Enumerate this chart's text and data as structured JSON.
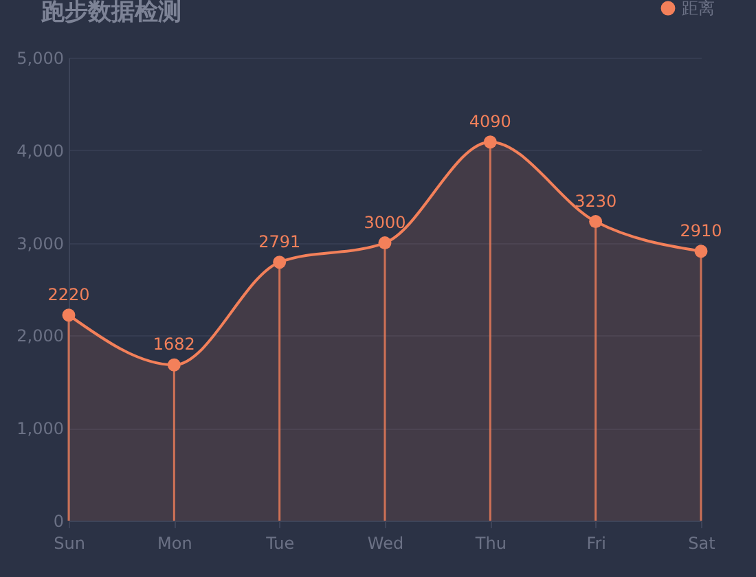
{
  "chart_data": {
    "type": "area",
    "title": "跑步数据检测",
    "categories": [
      "Sun",
      "Mon",
      "Tue",
      "Wed",
      "Thu",
      "Fri",
      "Sat"
    ],
    "series": [
      {
        "name": "距离",
        "color": "#f3805a",
        "values": [
          2220,
          1682,
          2791,
          3000,
          4090,
          3230,
          2910
        ]
      }
    ],
    "ylim": [
      0,
      5000
    ],
    "yticks": [
      0,
      {
        "value": 1000,
        "label": "1,000"
      },
      {
        "value": 2000,
        "label": "2,000"
      },
      {
        "value": 3000,
        "label": "3,000"
      },
      {
        "value": 4000,
        "label": "4,000"
      },
      {
        "value": 5000,
        "label": "5,000"
      }
    ],
    "grid": "y",
    "legend": "top right",
    "marker": "circle",
    "data_labels": true
  }
}
